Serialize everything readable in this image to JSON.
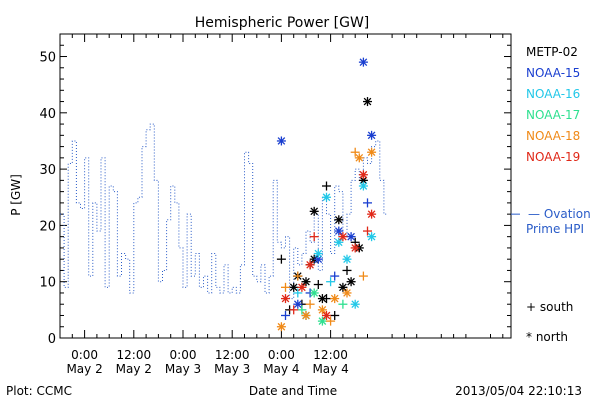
{
  "chart_data": {
    "type": "scatter",
    "title": "Hemispheric Power [GW]",
    "ylabel": "P [GW]",
    "xlabel": "Date and Time",
    "ylim": [
      0,
      54
    ],
    "xlim": [
      -6,
      104
    ],
    "x_units": "hours since 2013-05-02 00:00",
    "y_ticks": [
      0,
      10,
      20,
      30,
      40,
      50
    ],
    "x_ticks": [
      {
        "x": 0,
        "line1": "0:00",
        "line2": "May 2"
      },
      {
        "x": 12,
        "line1": "12:00",
        "line2": "May 2"
      },
      {
        "x": 24,
        "line1": "0:00",
        "line2": "May 3"
      },
      {
        "x": 36,
        "line1": "12:00",
        "line2": "May 3"
      },
      {
        "x": 48,
        "line1": "0:00",
        "line2": "May 4"
      },
      {
        "x": 60,
        "line1": "12:00",
        "line2": "May 4"
      }
    ],
    "satellites": [
      {
        "name": "METP-02",
        "color": "#000000"
      },
      {
        "name": "NOAA-15",
        "color": "#1a3fd0"
      },
      {
        "name": "NOAA-16",
        "color": "#22c8e8"
      },
      {
        "name": "NOAA-17",
        "color": "#2ee090"
      },
      {
        "name": "NOAA-18",
        "color": "#f08a18"
      },
      {
        "name": "NOAA-19",
        "color": "#e02818"
      }
    ],
    "ovation": {
      "name_line1": "— Ovation",
      "name_line2": "Prime HPI",
      "color": "#2a5cc8",
      "current_value": 22,
      "steps": [
        [
          -6,
          22
        ],
        [
          -5,
          9
        ],
        [
          -4,
          31
        ],
        [
          -3,
          35
        ],
        [
          -2,
          24
        ],
        [
          -1,
          23
        ],
        [
          0,
          32
        ],
        [
          1,
          11
        ],
        [
          2,
          24
        ],
        [
          3,
          19
        ],
        [
          4,
          32
        ],
        [
          5,
          9
        ],
        [
          6,
          27
        ],
        [
          7,
          26
        ],
        [
          8,
          11
        ],
        [
          9,
          15
        ],
        [
          10,
          14
        ],
        [
          11,
          8
        ],
        [
          12,
          24
        ],
        [
          13,
          25
        ],
        [
          14,
          34
        ],
        [
          15,
          37
        ],
        [
          16,
          38
        ],
        [
          17,
          28
        ],
        [
          18,
          10
        ],
        [
          19,
          12
        ],
        [
          20,
          21
        ],
        [
          21,
          27
        ],
        [
          22,
          24
        ],
        [
          23,
          16
        ],
        [
          24,
          9
        ],
        [
          25,
          22
        ],
        [
          26,
          11
        ],
        [
          27,
          15
        ],
        [
          28,
          9
        ],
        [
          29,
          11
        ],
        [
          30,
          8
        ],
        [
          31,
          15
        ],
        [
          32,
          9
        ],
        [
          33,
          8
        ],
        [
          34,
          13
        ],
        [
          35,
          8
        ],
        [
          36,
          9
        ],
        [
          37,
          8
        ],
        [
          38,
          13
        ],
        [
          39,
          33
        ],
        [
          40,
          31
        ],
        [
          41,
          11
        ],
        [
          42,
          10
        ],
        [
          43,
          13
        ],
        [
          44,
          8
        ],
        [
          45,
          11
        ],
        [
          46,
          28
        ],
        [
          47,
          17
        ],
        [
          48,
          16
        ],
        [
          49,
          18
        ],
        [
          50,
          7
        ],
        [
          51,
          16
        ],
        [
          52,
          13
        ],
        [
          53,
          15
        ],
        [
          54,
          19
        ],
        [
          55,
          17
        ],
        [
          56,
          22
        ],
        [
          57,
          12
        ],
        [
          58,
          25
        ],
        [
          59,
          22
        ],
        [
          60,
          15
        ],
        [
          61,
          27
        ],
        [
          62,
          26
        ],
        [
          63,
          18
        ],
        [
          64,
          22
        ],
        [
          65,
          28
        ],
        [
          66,
          30
        ],
        [
          67,
          28
        ],
        [
          68,
          32
        ],
        [
          69,
          31
        ],
        [
          70,
          34
        ],
        [
          71,
          35
        ],
        [
          72,
          28
        ],
        [
          73,
          22
        ]
      ]
    },
    "marker_legend": [
      {
        "symbol": "+",
        "label": "south"
      },
      {
        "symbol": "*",
        "label": "north"
      }
    ],
    "footer_left": "Plot: CCMC",
    "footer_right": "2013/05/04 22:10:13",
    "points": [
      {
        "sat": "METP-02",
        "hemi": "north",
        "x": 52,
        "y": 11
      },
      {
        "sat": "METP-02",
        "hemi": "north",
        "x": 54,
        "y": 10
      },
      {
        "sat": "METP-02",
        "hemi": "north",
        "x": 56,
        "y": 14
      },
      {
        "sat": "METP-02",
        "hemi": "north",
        "x": 58,
        "y": 7
      },
      {
        "sat": "METP-02",
        "hemi": "north",
        "x": 63,
        "y": 9
      },
      {
        "sat": "METP-02",
        "hemi": "north",
        "x": 65,
        "y": 10
      },
      {
        "sat": "METP-02",
        "hemi": "north",
        "x": 67,
        "y": 16
      },
      {
        "sat": "METP-02",
        "hemi": "north",
        "x": 68,
        "y": 28
      },
      {
        "sat": "METP-02",
        "hemi": "north",
        "x": 69,
        "y": 42
      },
      {
        "sat": "METP-02",
        "hemi": "north",
        "x": 56,
        "y": 22.5
      },
      {
        "sat": "METP-02",
        "hemi": "north",
        "x": 62,
        "y": 21
      },
      {
        "sat": "METP-02",
        "hemi": "north",
        "x": 51,
        "y": 9
      },
      {
        "sat": "METP-02",
        "hemi": "south",
        "x": 48,
        "y": 14
      },
      {
        "sat": "METP-02",
        "hemi": "south",
        "x": 59,
        "y": 27
      },
      {
        "sat": "METP-02",
        "hemi": "south",
        "x": 59,
        "y": 7
      },
      {
        "sat": "METP-02",
        "hemi": "south",
        "x": 61,
        "y": 4
      },
      {
        "sat": "METP-02",
        "hemi": "south",
        "x": 55,
        "y": 13
      },
      {
        "sat": "METP-02",
        "hemi": "south",
        "x": 66,
        "y": 17
      },
      {
        "sat": "METP-02",
        "hemi": "south",
        "x": 50,
        "y": 5
      },
      {
        "sat": "METP-02",
        "hemi": "south",
        "x": 57,
        "y": 9.5
      },
      {
        "sat": "METP-02",
        "hemi": "south",
        "x": 53,
        "y": 6
      },
      {
        "sat": "METP-02",
        "hemi": "south",
        "x": 64,
        "y": 12
      },
      {
        "sat": "NOAA-15",
        "hemi": "north",
        "x": 48,
        "y": 35
      },
      {
        "sat": "NOAA-15",
        "hemi": "north",
        "x": 68,
        "y": 49
      },
      {
        "sat": "NOAA-15",
        "hemi": "north",
        "x": 70,
        "y": 36
      },
      {
        "sat": "NOAA-15",
        "hemi": "north",
        "x": 65,
        "y": 18
      },
      {
        "sat": "NOAA-15",
        "hemi": "north",
        "x": 52,
        "y": 6
      },
      {
        "sat": "NOAA-15",
        "hemi": "north",
        "x": 62,
        "y": 19
      },
      {
        "sat": "NOAA-15",
        "hemi": "north",
        "x": 57,
        "y": 14
      },
      {
        "sat": "NOAA-15",
        "hemi": "south",
        "x": 49,
        "y": 4
      },
      {
        "sat": "NOAA-15",
        "hemi": "south",
        "x": 55,
        "y": 8
      },
      {
        "sat": "NOAA-15",
        "hemi": "south",
        "x": 61,
        "y": 11
      },
      {
        "sat": "NOAA-15",
        "hemi": "south",
        "x": 69,
        "y": 24
      },
      {
        "sat": "NOAA-16",
        "hemi": "north",
        "x": 59,
        "y": 25
      },
      {
        "sat": "NOAA-16",
        "hemi": "north",
        "x": 62,
        "y": 17
      },
      {
        "sat": "NOAA-16",
        "hemi": "north",
        "x": 64,
        "y": 14
      },
      {
        "sat": "NOAA-16",
        "hemi": "north",
        "x": 68,
        "y": 27
      },
      {
        "sat": "NOAA-16",
        "hemi": "north",
        "x": 70,
        "y": 18
      },
      {
        "sat": "NOAA-16",
        "hemi": "north",
        "x": 57,
        "y": 15
      },
      {
        "sat": "NOAA-16",
        "hemi": "north",
        "x": 54,
        "y": 4
      },
      {
        "sat": "NOAA-16",
        "hemi": "north",
        "x": 66,
        "y": 6
      },
      {
        "sat": "NOAA-16",
        "hemi": "south",
        "x": 52,
        "y": 8
      },
      {
        "sat": "NOAA-16",
        "hemi": "south",
        "x": 60,
        "y": 10
      },
      {
        "sat": "NOAA-17",
        "hemi": "north",
        "x": 58,
        "y": 3
      },
      {
        "sat": "NOAA-17",
        "hemi": "north",
        "x": 56,
        "y": 8
      },
      {
        "sat": "NOAA-17",
        "hemi": "south",
        "x": 53,
        "y": 5
      },
      {
        "sat": "NOAA-17",
        "hemi": "south",
        "x": 63,
        "y": 6
      },
      {
        "sat": "NOAA-18",
        "hemi": "north",
        "x": 48,
        "y": 2
      },
      {
        "sat": "NOAA-18",
        "hemi": "north",
        "x": 54,
        "y": 4
      },
      {
        "sat": "NOAA-18",
        "hemi": "north",
        "x": 58,
        "y": 5
      },
      {
        "sat": "NOAA-18",
        "hemi": "north",
        "x": 67,
        "y": 32
      },
      {
        "sat": "NOAA-18",
        "hemi": "north",
        "x": 70,
        "y": 33
      },
      {
        "sat": "NOAA-18",
        "hemi": "north",
        "x": 64,
        "y": 8
      },
      {
        "sat": "NOAA-18",
        "hemi": "north",
        "x": 61,
        "y": 7
      },
      {
        "sat": "NOAA-18",
        "hemi": "south",
        "x": 49,
        "y": 9
      },
      {
        "sat": "NOAA-18",
        "hemi": "south",
        "x": 52,
        "y": 11
      },
      {
        "sat": "NOAA-18",
        "hemi": "south",
        "x": 55,
        "y": 6
      },
      {
        "sat": "NOAA-18",
        "hemi": "south",
        "x": 60,
        "y": 3
      },
      {
        "sat": "NOAA-18",
        "hemi": "south",
        "x": 66,
        "y": 33
      },
      {
        "sat": "NOAA-18",
        "hemi": "south",
        "x": 68,
        "y": 11
      },
      {
        "sat": "NOAA-19",
        "hemi": "north",
        "x": 49,
        "y": 7
      },
      {
        "sat": "NOAA-19",
        "hemi": "north",
        "x": 53,
        "y": 9
      },
      {
        "sat": "NOAA-19",
        "hemi": "north",
        "x": 55,
        "y": 13
      },
      {
        "sat": "NOAA-19",
        "hemi": "north",
        "x": 59,
        "y": 4
      },
      {
        "sat": "NOAA-19",
        "hemi": "north",
        "x": 63,
        "y": 18
      },
      {
        "sat": "NOAA-19",
        "hemi": "north",
        "x": 66,
        "y": 16
      },
      {
        "sat": "NOAA-19",
        "hemi": "north",
        "x": 70,
        "y": 22
      },
      {
        "sat": "NOAA-19",
        "hemi": "north",
        "x": 68,
        "y": 29
      },
      {
        "sat": "NOAA-19",
        "hemi": "south",
        "x": 56,
        "y": 18
      },
      {
        "sat": "NOAA-19",
        "hemi": "south",
        "x": 69,
        "y": 19
      },
      {
        "sat": "NOAA-19",
        "hemi": "south",
        "x": 51,
        "y": 5
      }
    ]
  }
}
